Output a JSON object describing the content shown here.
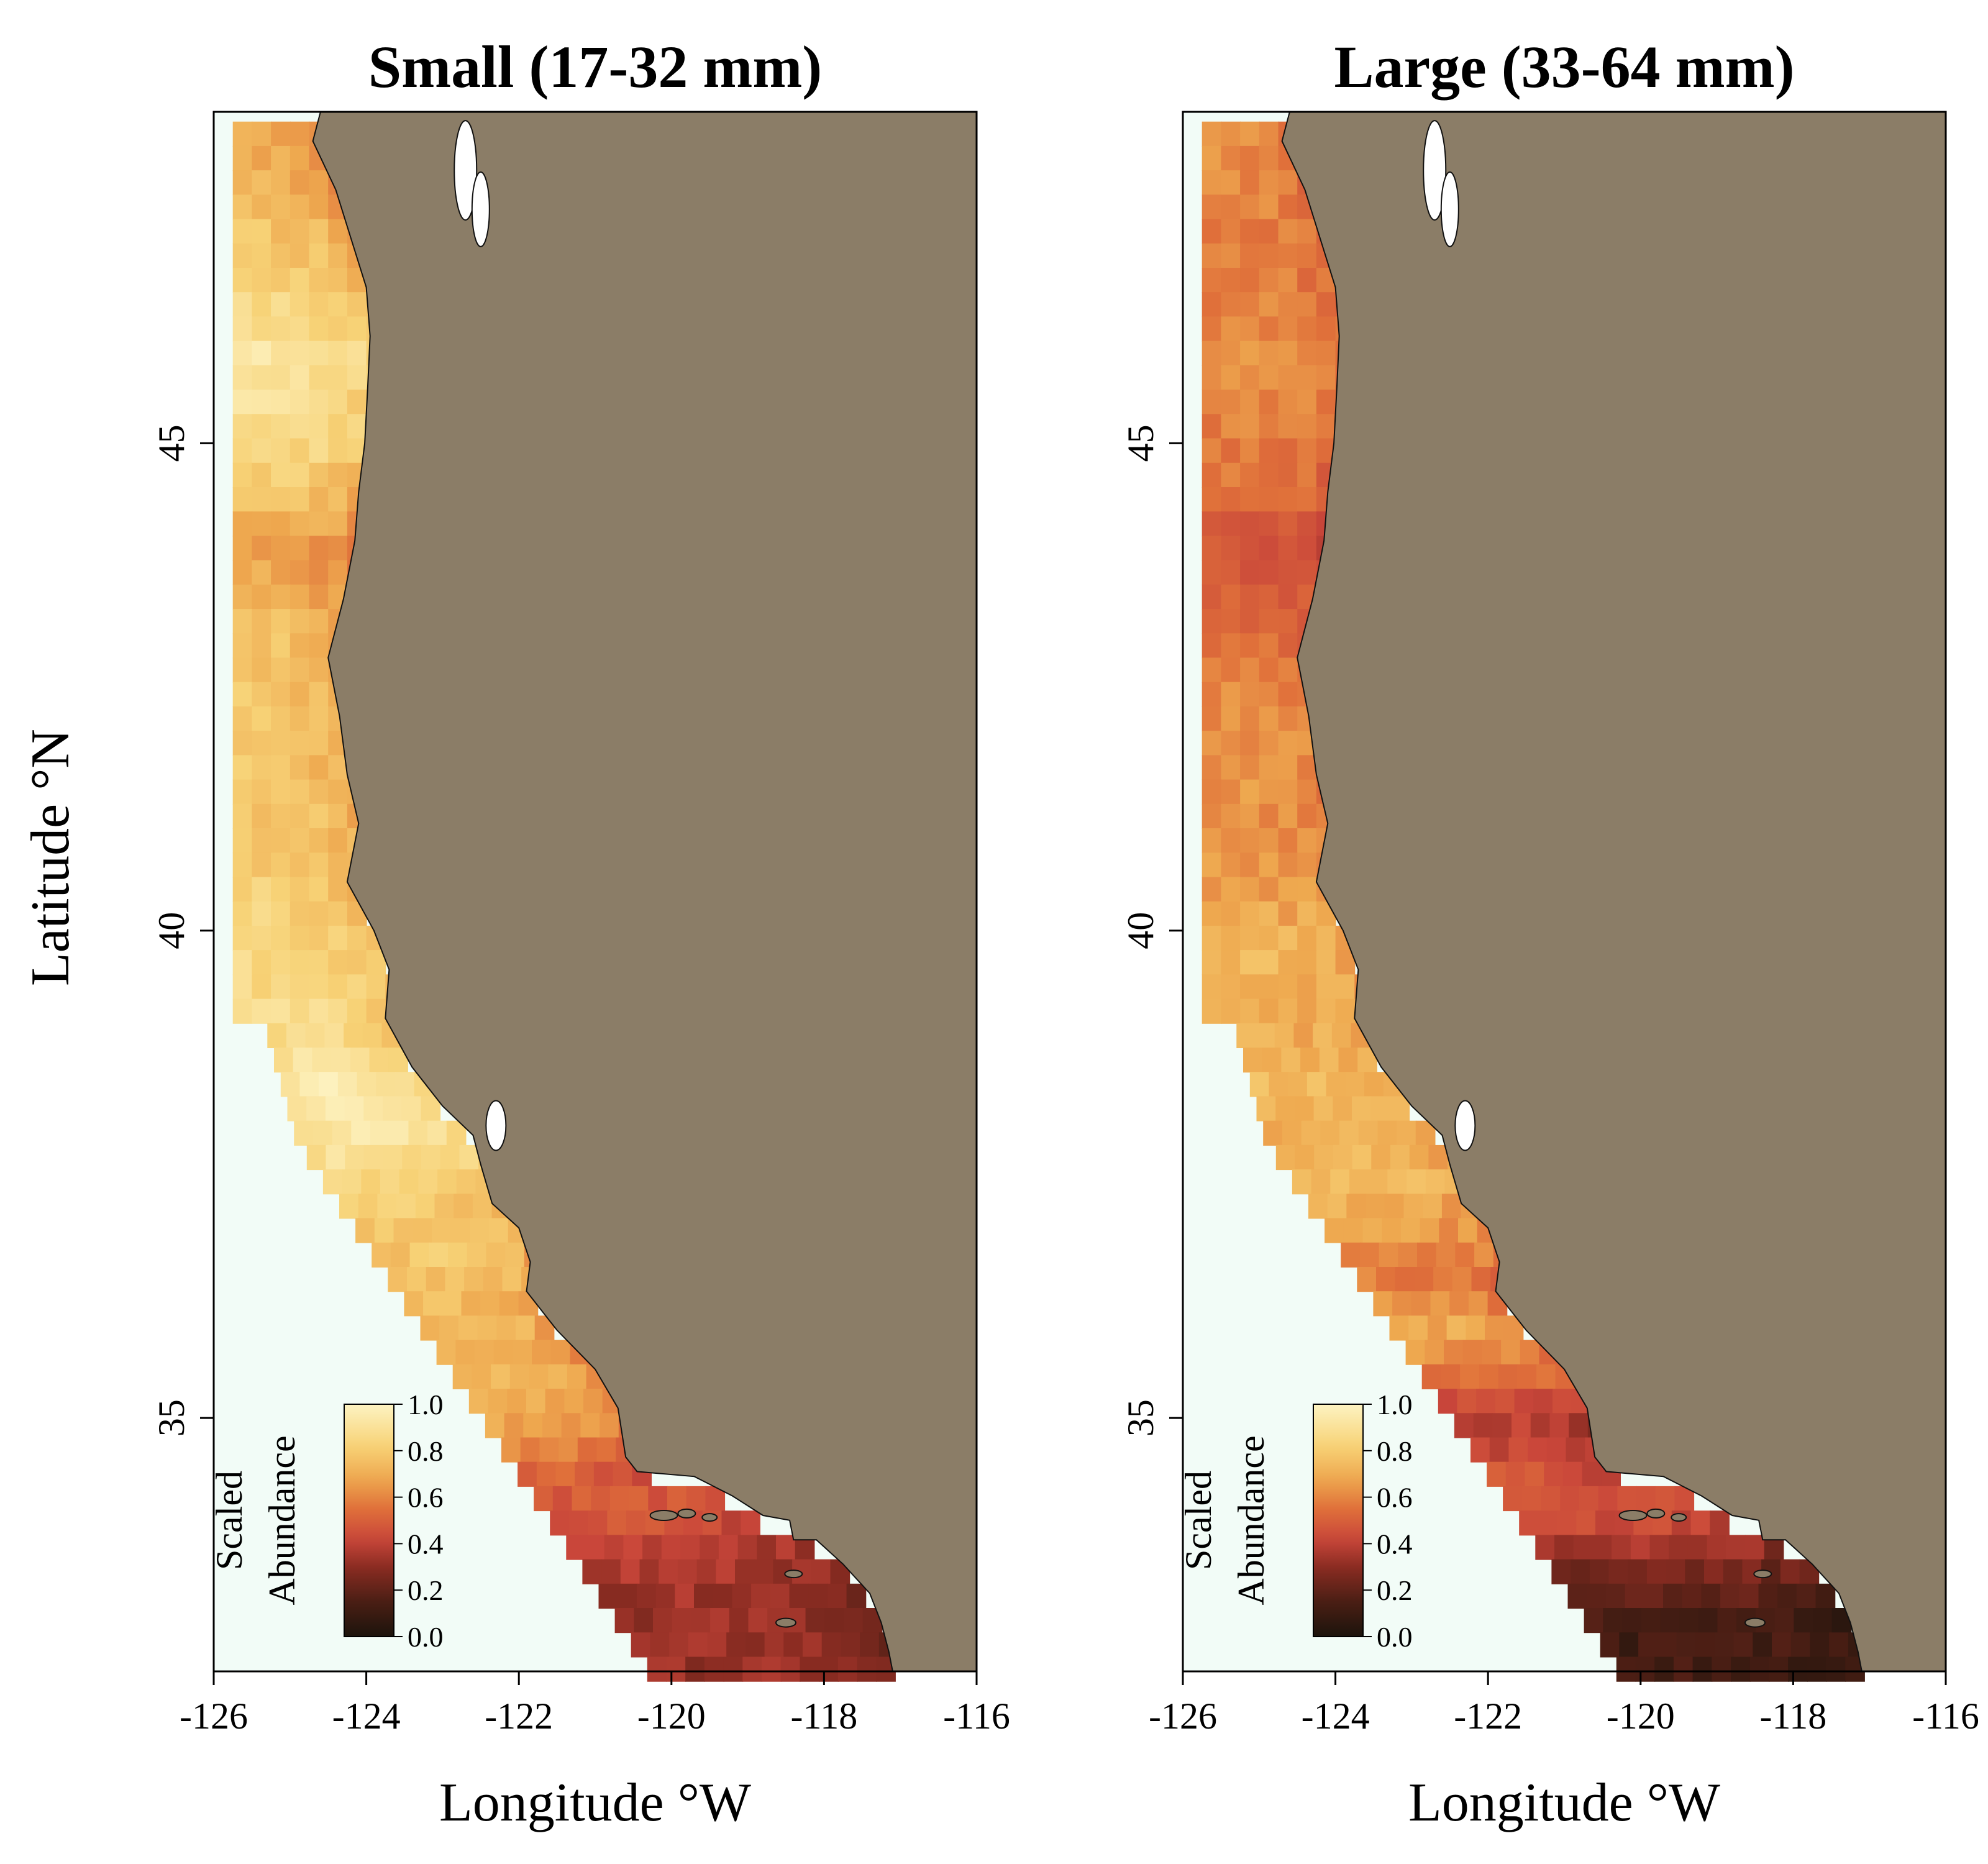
{
  "panels": [
    {
      "title": "Small (17-32 mm)",
      "xlabel": "Longitude °W",
      "x_ticks": [
        "-126",
        "-124",
        "-122",
        "-120",
        "-118",
        "-116"
      ],
      "y_ticks": [
        "45",
        "40",
        "35"
      ],
      "legend": {
        "title_line1": "Scaled",
        "title_line2": "Abundance",
        "ticks": [
          "0.0",
          "0.2",
          "0.4",
          "0.6",
          "0.8",
          "1.0"
        ]
      }
    },
    {
      "title": "Large (33-64 mm)",
      "xlabel": "Longitude °W",
      "x_ticks": [
        "-126",
        "-124",
        "-122",
        "-120",
        "-118",
        "-116"
      ],
      "y_ticks": [
        "45",
        "40",
        "35"
      ],
      "legend": {
        "title_line1": "Scaled",
        "title_line2": "Abundance",
        "ticks": [
          "0.0",
          "0.2",
          "0.4",
          "0.6",
          "0.8",
          "1.0"
        ]
      }
    }
  ],
  "ylabel": "Latitude °N",
  "colors": {
    "land": "#8B7D67",
    "ocean": "#F2FCF7",
    "palette": [
      "#1c140c",
      "#4a1e14",
      "#8b2c22",
      "#c9463a",
      "#e0703a",
      "#eea84f",
      "#f7d276",
      "#fdf3c2"
    ]
  },
  "chart_data": [
    {
      "type": "heatmap",
      "title": "Small (17-32 mm)",
      "xlabel": "Longitude °W",
      "xlim": [
        -126,
        -116
      ],
      "ylim": [
        32.4,
        48.4
      ],
      "value_range": [
        0,
        1
      ],
      "coastal_profile": [
        [
          48.0,
          0.65
        ],
        [
          47.0,
          0.72
        ],
        [
          46.0,
          0.85
        ],
        [
          45.0,
          0.78
        ],
        [
          44.0,
          0.6
        ],
        [
          43.0,
          0.72
        ],
        [
          42.0,
          0.7
        ],
        [
          41.0,
          0.72
        ],
        [
          40.0,
          0.78
        ],
        [
          39.0,
          0.8
        ],
        [
          38.5,
          0.88
        ],
        [
          38.0,
          0.85
        ],
        [
          37.5,
          0.78
        ],
        [
          37.0,
          0.72
        ],
        [
          36.5,
          0.7
        ],
        [
          36.0,
          0.68
        ],
        [
          35.5,
          0.65
        ],
        [
          35.0,
          0.6
        ],
        [
          34.5,
          0.45
        ],
        [
          34.0,
          0.38
        ],
        [
          33.5,
          0.28
        ],
        [
          33.0,
          0.25
        ]
      ]
    },
    {
      "type": "heatmap",
      "title": "Large (33-64 mm)",
      "xlabel": "Longitude °W",
      "xlim": [
        -126,
        -116
      ],
      "ylim": [
        32.4,
        48.4
      ],
      "value_range": [
        0,
        1
      ],
      "coastal_profile": [
        [
          48.0,
          0.6
        ],
        [
          47.0,
          0.55
        ],
        [
          46.0,
          0.6
        ],
        [
          45.0,
          0.55
        ],
        [
          44.0,
          0.45
        ],
        [
          43.0,
          0.55
        ],
        [
          42.0,
          0.62
        ],
        [
          41.0,
          0.6
        ],
        [
          40.0,
          0.7
        ],
        [
          39.0,
          0.68
        ],
        [
          38.5,
          0.72
        ],
        [
          38.0,
          0.68
        ],
        [
          37.5,
          0.72
        ],
        [
          37.0,
          0.62
        ],
        [
          36.5,
          0.55
        ],
        [
          36.0,
          0.68
        ],
        [
          35.5,
          0.5
        ],
        [
          35.0,
          0.35
        ],
        [
          34.5,
          0.45
        ],
        [
          34.0,
          0.4
        ],
        [
          33.5,
          0.2
        ],
        [
          33.0,
          0.1
        ]
      ]
    }
  ]
}
